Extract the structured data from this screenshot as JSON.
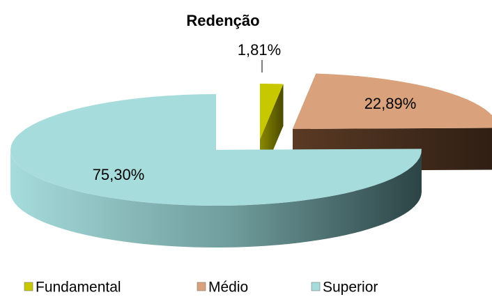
{
  "chart_data": {
    "type": "pie3d",
    "title": "Redenção",
    "categories": [
      "Fundamental",
      "Médio",
      "Superior"
    ],
    "values": [
      1.81,
      22.89,
      75.3
    ],
    "value_labels": [
      "1,81%",
      "22,89%",
      "75,30%"
    ],
    "colors": [
      "#c8c800",
      "#d9a27c",
      "#a6dcdc"
    ],
    "legend": "bottom"
  }
}
